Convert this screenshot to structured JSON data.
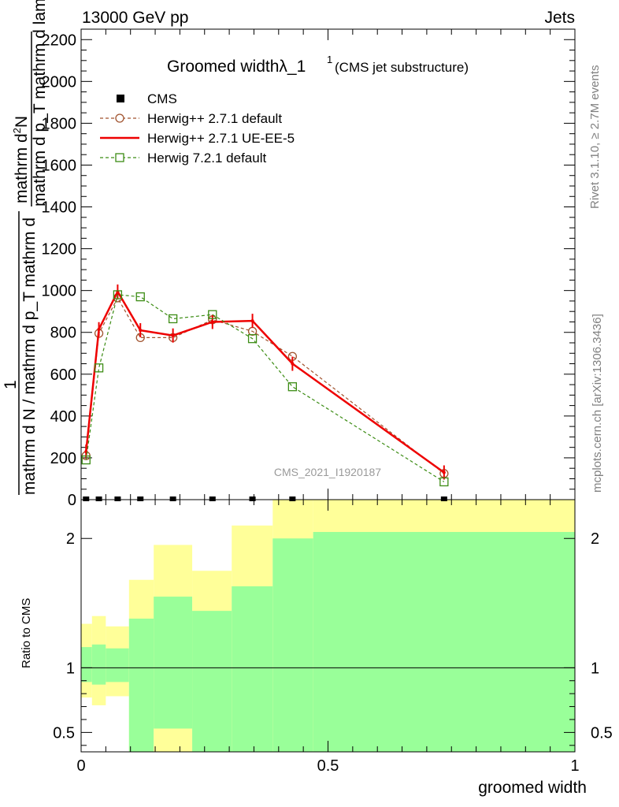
{
  "header": {
    "left": "13000 GeV pp",
    "right": "Jets"
  },
  "plot_title": {
    "main": "Groomed widthλ_1",
    "superscript": "1",
    "sub": "(CMS jet substructure)"
  },
  "watermark": "CMS_2021_I1920187",
  "side_text": {
    "rivet": "Rivet 3.1.10, ≥ 2.7M events",
    "mcplots": "mcplots.cern.ch [arXiv:1306.3436]"
  },
  "ylabel_main": {
    "line1": "mathrm d",
    "line1_super": "2",
    "line1_rest": "N",
    "line2": "mathrm d p_T mathrm d lambda",
    "one": "1",
    "line3": "mathrm d N / mathrm d p_T mathrm d"
  },
  "ylabel_ratio": "Ratio to CMS",
  "xlabel": "groomed width",
  "colors": {
    "cms": "#000000",
    "herwig_default": "#a0522d",
    "herwig_ueee5": "#ee0000",
    "herwig72": "#3c8c14",
    "band_outer": "#ffff99",
    "band_inner": "#99ff99"
  },
  "chart_data": {
    "type": "line",
    "x_range": [
      0,
      1
    ],
    "y_range": [
      0,
      2250
    ],
    "y_ticks": [
      0,
      200,
      400,
      600,
      800,
      1000,
      1200,
      1400,
      1600,
      1800,
      2000,
      2200
    ],
    "x_ticks": [
      0,
      0.5,
      1
    ],
    "x_tick_labels": [
      "0",
      "0.5",
      "1"
    ],
    "legend": [
      "CMS",
      "Herwig++ 2.7.1 default",
      "Herwig++ 2.7.1 UE-EE-5",
      "Herwig 7.2.1 default"
    ],
    "series": [
      {
        "name": "CMS",
        "style": "square",
        "x": [
          0.01,
          0.036,
          0.074,
          0.12,
          0.186,
          0.266,
          0.347,
          0.428,
          0.735
        ],
        "y": [
          0,
          0,
          0,
          0,
          0,
          0,
          0,
          0,
          0
        ]
      },
      {
        "name": "Herwig++ 2.7.1 default",
        "style": "circle-dashed",
        "x": [
          0.01,
          0.036,
          0.074,
          0.12,
          0.186,
          0.266,
          0.347,
          0.428,
          0.735
        ],
        "y": [
          210,
          795,
          965,
          775,
          775,
          860,
          805,
          685,
          125
        ]
      },
      {
        "name": "Herwig++ 2.7.1 UE-EE-5",
        "style": "solid-errors",
        "x": [
          0.01,
          0.036,
          0.074,
          0.12,
          0.186,
          0.266,
          0.347,
          0.428,
          0.735
        ],
        "y": [
          230,
          815,
          995,
          810,
          785,
          850,
          855,
          650,
          130
        ]
      },
      {
        "name": "Herwig 7.2.1 default",
        "style": "square-dashed",
        "x": [
          0.01,
          0.036,
          0.074,
          0.12,
          0.186,
          0.266,
          0.347,
          0.428,
          0.735
        ],
        "y": [
          190,
          630,
          980,
          970,
          865,
          885,
          770,
          540,
          85
        ]
      }
    ],
    "ratio": {
      "y_range": [
        0.35,
        2.3
      ],
      "y_ticks": [
        0.5,
        1,
        2
      ],
      "y_tick_labels": [
        "0.5",
        "1",
        "2"
      ],
      "reference": 1,
      "bins": [
        0,
        0.022,
        0.05,
        0.097,
        0.147,
        0.225,
        0.305,
        0.388,
        0.47,
        1.0
      ],
      "inner_low": [
        0.89,
        0.87,
        0.89,
        0.35,
        0.53,
        0.35,
        0.35,
        0.35,
        0.35
      ],
      "inner_high": [
        1.16,
        1.18,
        1.15,
        1.38,
        1.55,
        1.44,
        1.63,
        2.0,
        2.05
      ],
      "outer_low": [
        0.77,
        0.71,
        0.78,
        0.35,
        0.35,
        0.35,
        0.35,
        0.35,
        0.35
      ],
      "outer_high": [
        1.34,
        1.4,
        1.32,
        1.68,
        1.95,
        1.75,
        2.1,
        2.3,
        2.3
      ]
    }
  }
}
